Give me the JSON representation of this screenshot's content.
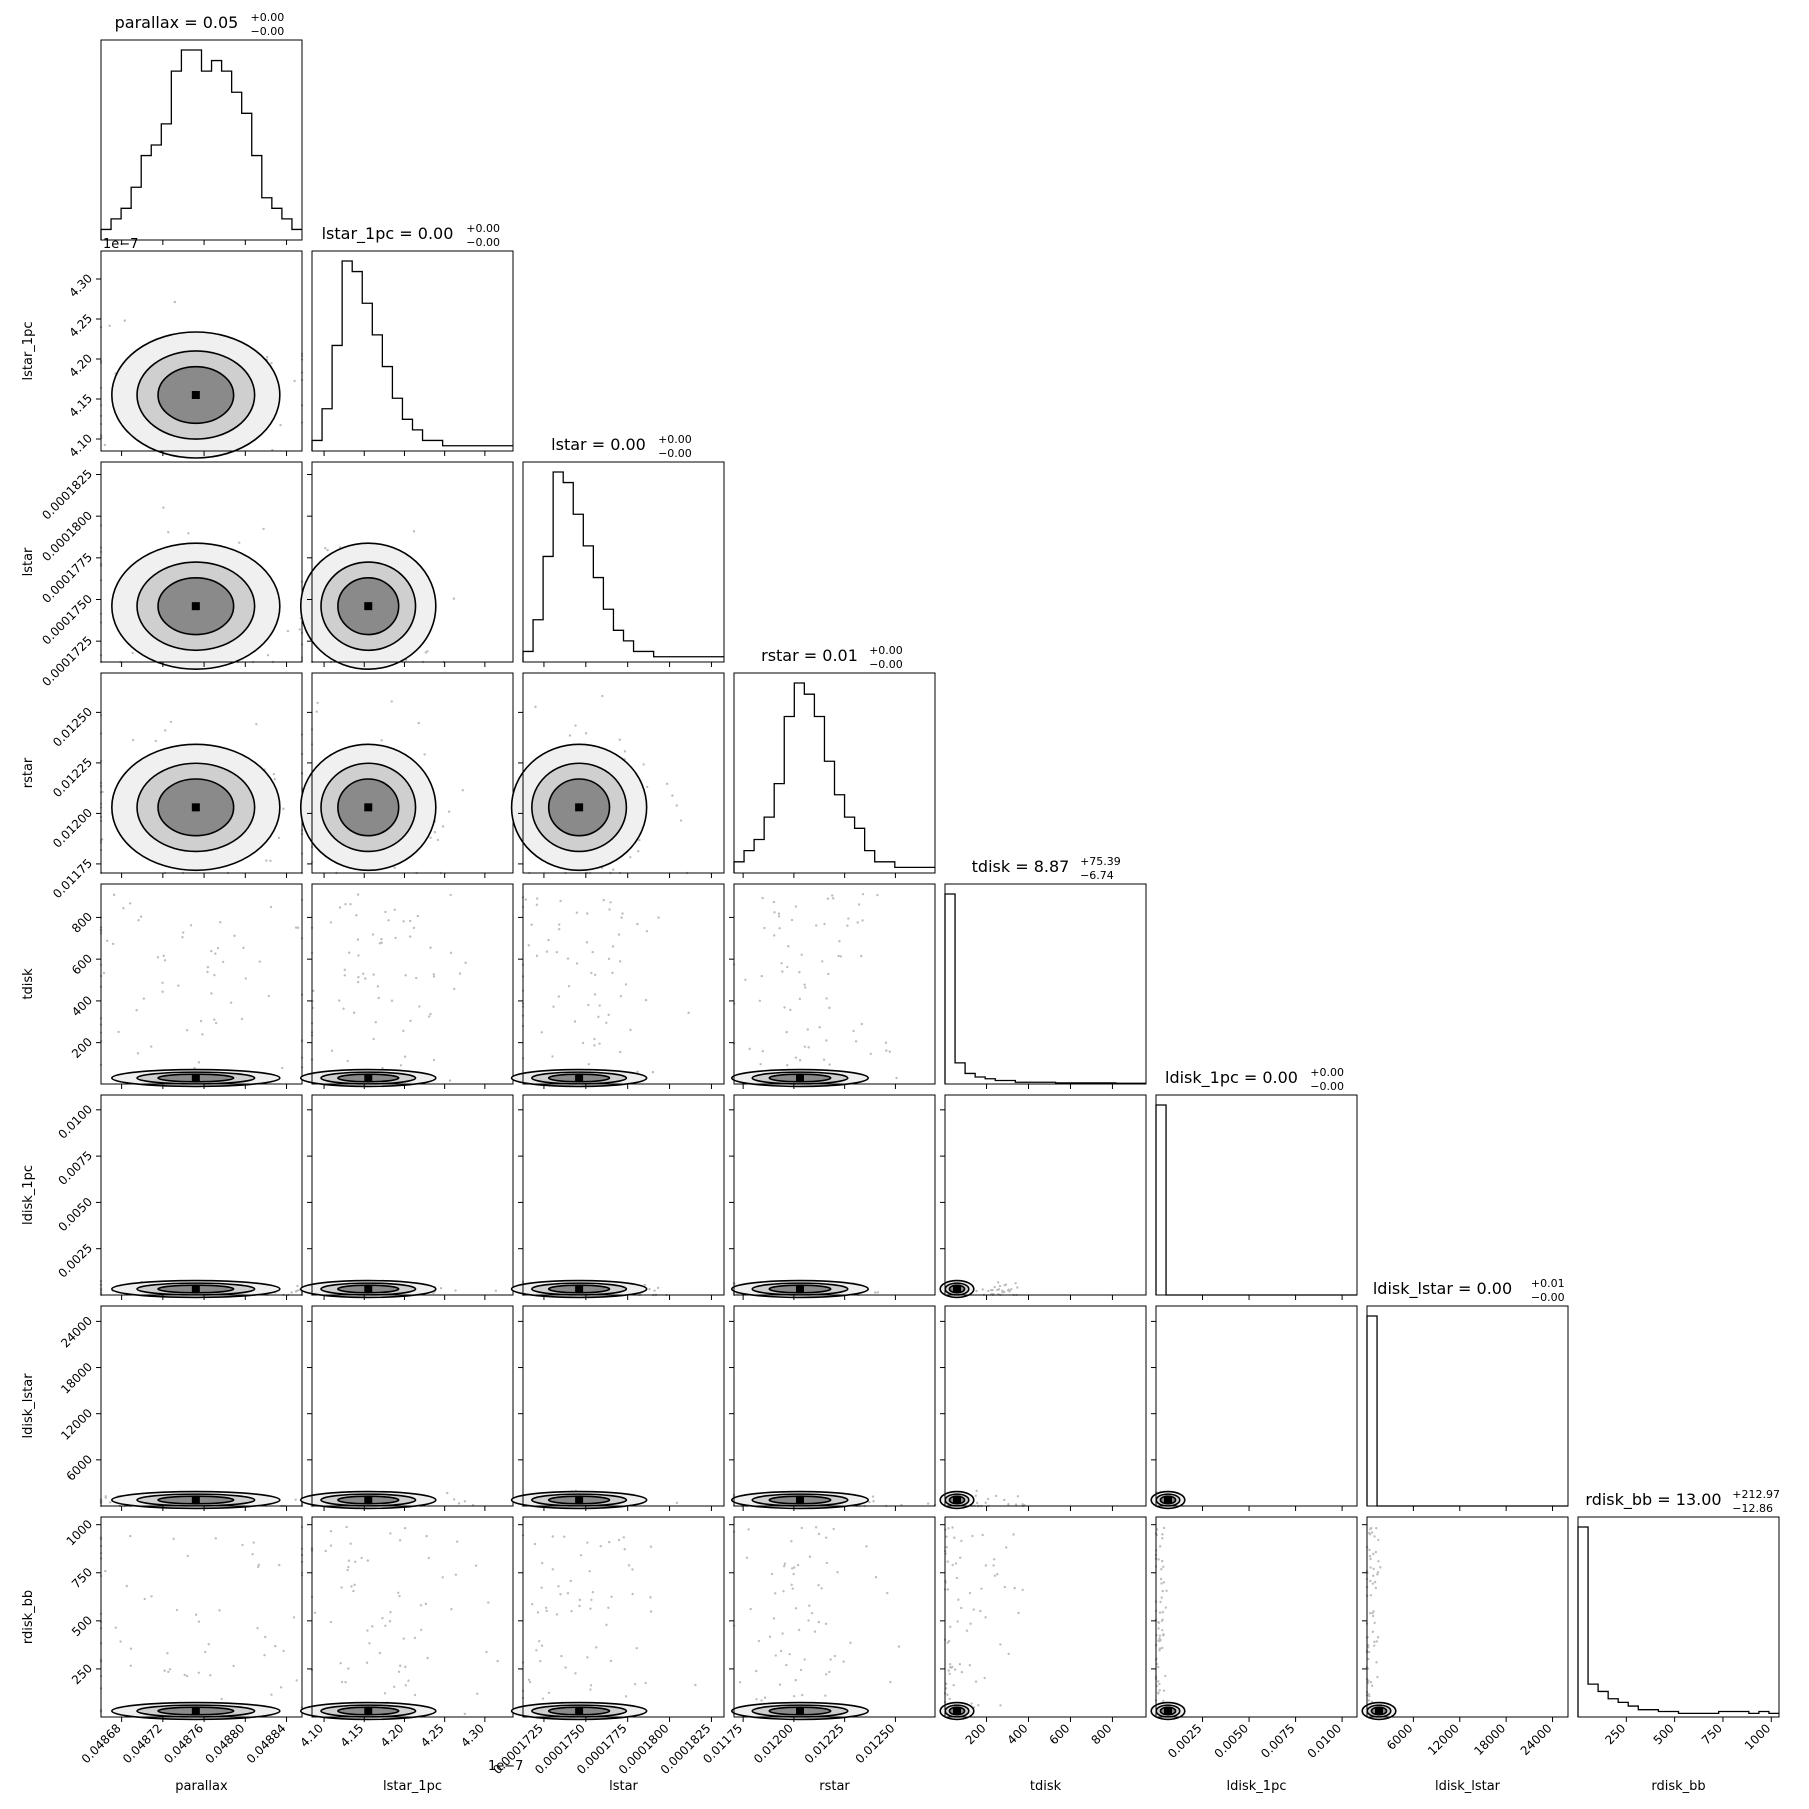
{
  "chart_data": {
    "type": "corner",
    "parameters": [
      {
        "name": "parallax",
        "title_value": "0.05",
        "title_plus": "+0.00",
        "title_minus": "−0.00",
        "range": [
          0.04866,
          0.048855
        ],
        "offset_text": "",
        "ticks": [
          0.04868,
          0.04872,
          0.04876,
          0.0488,
          0.04884
        ],
        "tick_labels": [
          "0.04868",
          "0.04872",
          "0.04876",
          "0.04880",
          "0.04884"
        ],
        "hist": [
          1,
          2,
          3,
          5,
          8,
          9,
          11,
          16,
          18,
          18,
          16,
          17,
          16,
          14,
          12,
          8,
          4,
          3,
          2,
          1
        ],
        "core": [
          0.048752,
          0.0
        ],
        "spread": [
          4e-05,
          0.0
        ]
      },
      {
        "name": "lstar_1pc",
        "title_value": "0.00",
        "title_plus": "+0.00",
        "title_minus": "−0.00",
        "range": [
          4.085,
          4.335
        ],
        "offset_text": "1e−7",
        "ticks": [
          4.1,
          4.15,
          4.2,
          4.25,
          4.3
        ],
        "tick_labels": [
          "4.10",
          "4.15",
          "4.20",
          "4.25",
          "4.30"
        ],
        "hist": [
          1,
          4,
          10,
          18,
          17,
          14,
          11,
          8,
          5,
          3,
          2,
          1,
          1,
          0.5,
          0.5,
          0.5,
          0.5,
          0.5,
          0.5,
          0.5
        ],
        "core": [
          4.155,
          0.0
        ],
        "spread": [
          0.025,
          0.0
        ]
      },
      {
        "name": "lstar",
        "title_value": "0.00",
        "title_plus": "+0.00",
        "title_minus": "−0.00",
        "range": [
          0.00017125,
          0.00018325
        ],
        "offset_text": "",
        "ticks": [
          0.0001725,
          0.000175,
          0.0001775,
          0.00018,
          0.0001825
        ],
        "tick_labels": [
          "0.0001725",
          "0.0001750",
          "0.0001775",
          "0.0001800",
          "0.0001825"
        ],
        "hist": [
          1,
          4,
          10,
          18,
          17,
          14,
          11,
          8,
          5,
          3,
          2,
          1,
          1,
          0.5,
          0.5,
          0.5,
          0.5,
          0.5,
          0.5,
          0.5
        ],
        "core": [
          0.0001746,
          0.0
        ],
        "spread": [
          1.2e-06,
          0.0
        ]
      },
      {
        "name": "rstar",
        "title_value": "0.01",
        "title_plus": "+0.00",
        "title_minus": "−0.00",
        "range": [
          0.011705,
          0.012695
        ],
        "offset_text": "",
        "ticks": [
          0.01175,
          0.012,
          0.01225,
          0.0125
        ],
        "tick_labels": [
          "0.01175",
          "0.01200",
          "0.01225",
          "0.01250"
        ],
        "hist": [
          1,
          2,
          3,
          5,
          8,
          14,
          17,
          16,
          14,
          10,
          7,
          5,
          4,
          2,
          1,
          1,
          0.5,
          0.5,
          0.5,
          0.5
        ],
        "core": [
          0.01203,
          0.0
        ],
        "spread": [
          0.0001,
          0.0
        ]
      },
      {
        "name": "tdisk",
        "title_value": "8.87",
        "title_plus": "+75.39",
        "title_minus": "−6.74",
        "range": [
          2,
          960
        ],
        "offset_text": "",
        "ticks": [
          200,
          400,
          600,
          800
        ],
        "tick_labels": [
          "200",
          "400",
          "600",
          "800"
        ],
        "hist": [
          54,
          6,
          3,
          2,
          1.5,
          1,
          1,
          0.5,
          0.5,
          0.5,
          0.5,
          0.3,
          0.3,
          0.3,
          0.3,
          0.3,
          0.3,
          0.2,
          0.2,
          0.2
        ],
        "core": [
          20,
          0.0
        ],
        "spread": [
          10,
          0.0
        ]
      },
      {
        "name": "ldisk_1pc",
        "title_value": "0.00",
        "title_plus": "+0.00",
        "title_minus": "−0.00",
        "range": [
          0.0,
          0.0108
        ],
        "offset_text": "",
        "ticks": [
          0.0025,
          0.005,
          0.0075,
          0.01
        ],
        "tick_labels": [
          "0.0025",
          "0.0050",
          "0.0075",
          "0.0100"
        ],
        "hist": [
          58,
          0,
          0,
          0,
          0,
          0,
          0,
          0,
          0,
          0,
          0,
          0,
          0,
          0,
          0,
          0,
          0,
          0,
          0,
          0
        ],
        "core": [
          0.0002,
          0.0
        ],
        "spread": [
          0.0001,
          0.0
        ]
      },
      {
        "name": "ldisk_lstar",
        "title_value": "0.00",
        "title_plus": "+0.01",
        "title_minus": "−0.00",
        "range": [
          0,
          26000
        ],
        "offset_text": "",
        "ticks": [
          6000,
          12000,
          18000,
          24000
        ],
        "tick_labels": [
          "6000",
          "12000",
          "18000",
          "24000"
        ],
        "hist": [
          58,
          0,
          0,
          0,
          0,
          0,
          0,
          0,
          0,
          0,
          0,
          0,
          0,
          0,
          0,
          0,
          0,
          0,
          0,
          0
        ],
        "core": [
          500,
          0.0
        ],
        "spread": [
          250,
          0.0
        ]
      },
      {
        "name": "rdisk_bb",
        "title_value": "13.00",
        "title_plus": "+212.97",
        "title_minus": "−12.86",
        "range": [
          0,
          1040
        ],
        "offset_text": "",
        "ticks": [
          250,
          500,
          750,
          1000
        ],
        "tick_labels": [
          "250",
          "500",
          "750",
          "1000"
        ],
        "hist": [
          52,
          9,
          7,
          5,
          4,
          3,
          2,
          2,
          1.5,
          1.5,
          1,
          1,
          1,
          1,
          1.5,
          1.5,
          1.5,
          1,
          1.5,
          1
        ],
        "core": [
          40,
          0.0
        ],
        "spread": [
          25,
          0.0
        ]
      }
    ],
    "x_axis_labels": [
      "parallax",
      "lstar_1pc",
      "lstar",
      "rstar",
      "tdisk",
      "ldisk_1pc",
      "ldisk_lstar",
      "rdisk_bb"
    ],
    "y_axis_labels": [
      "lstar_1pc",
      "lstar",
      "rstar",
      "tdisk",
      "ldisk_1pc",
      "ldisk_lstar",
      "rdisk_bb"
    ],
    "grid": false,
    "histogram_style": "step",
    "panel_style": "2d histogram with contours and scattered samples",
    "colors": {
      "line": "#000000",
      "points": "#b0b0b0",
      "fill_dark": "#000000"
    }
  }
}
